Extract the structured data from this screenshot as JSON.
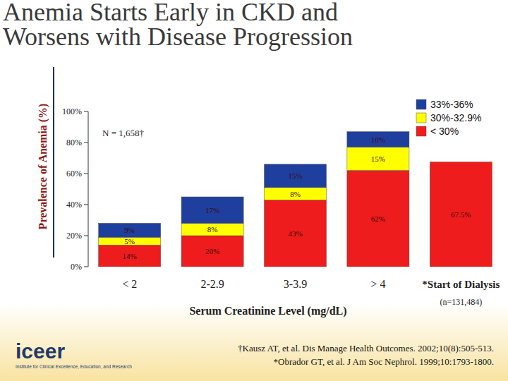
{
  "chart_data": {
    "type": "bar",
    "stacked": true,
    "data_labels": true,
    "title": "Anemia Starts Early in CKD and Worsens with Disease Progression",
    "y_label": "Prevalence of Anemia (%)",
    "x_label": "Serum Creatinine Level (mg/dL)",
    "categories": [
      "< 2",
      "2-2.9",
      "3-3.9",
      "> 4",
      "*Start of Dialysis"
    ],
    "series": [
      {
        "name": "< 30%",
        "color": "#ee1c1c",
        "values": [
          14,
          20,
          43,
          62,
          67.5
        ],
        "value_labels": [
          "14%",
          "20%",
          "43%",
          "62%",
          "67.5%"
        ]
      },
      {
        "name": "30%-32.9%",
        "color": "#ffff00",
        "values": [
          5,
          8,
          8,
          15,
          null
        ],
        "value_labels": [
          "5%",
          "8%",
          "8%",
          "15%",
          null
        ]
      },
      {
        "name": "33%-36%",
        "color": "#1f3f9f",
        "values": [
          9,
          17,
          15,
          10,
          null
        ],
        "value_labels": [
          "9%",
          "17%",
          "15%",
          "10%",
          null
        ]
      }
    ],
    "ylim": [
      0,
      100
    ],
    "yticks": [
      {
        "value": 0,
        "label": "0%"
      },
      {
        "value": 20,
        "label": "20%"
      },
      {
        "value": 40,
        "label": "40%"
      },
      {
        "value": 60,
        "label": "60%"
      },
      {
        "value": 80,
        "label": "80%"
      },
      {
        "value": 100,
        "label": "100%"
      }
    ],
    "legend": "top-right",
    "annotations": [
      "N = 1,658†",
      "(n=131,484)"
    ],
    "footnotes": [
      "†Kausz AT, et al. Dis Manage Health Outcomes. 2002;10(8):505-513.",
      "*Obrador GT, et al. J Am Soc Nephrol. 1999;10:1793-1800."
    ]
  },
  "logo": {
    "name": "iceer",
    "tagline": "Institute for Clinical Excellence, Education, and Research"
  }
}
